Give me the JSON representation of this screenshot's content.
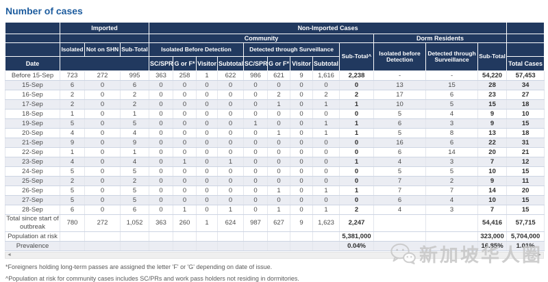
{
  "title": "Number of cases",
  "header": {
    "imported": "Imported",
    "non_imported": "Non-Imported Cases",
    "community": "Community",
    "dorm_residents": "Dorm Residents",
    "isolated": "Isolated",
    "not_on_shn": "Not on SHN",
    "sub_total": "Sub-Total",
    "isolated_before_detection": "Isolated Before Detection",
    "detected_through_surveillance": "Detected through Surveillance",
    "community_sub_total": "Sub-Total^",
    "dorm_isolated": "Isolated before Detection",
    "dorm_detected": "Detected through Surveillance",
    "dorm_sub_total": "Sub-Total",
    "date": "Date",
    "sc_spr": "SC/SPR",
    "g_or_f": "G or F*",
    "visitor": "Visitor",
    "subtotal": "Subtotal",
    "total_cases": "Total Cases"
  },
  "rows": [
    {
      "type": "date",
      "label": "Before 15-Sep",
      "values": [
        "723",
        "272",
        "995",
        "363",
        "258",
        "1",
        "622",
        "986",
        "621",
        "9",
        "1,616",
        "2,238",
        "-",
        "-",
        "54,220",
        "57,453"
      ]
    },
    {
      "type": "date",
      "label": "15-Sep",
      "values": [
        "6",
        "0",
        "6",
        "0",
        "0",
        "0",
        "0",
        "0",
        "0",
        "0",
        "0",
        "0",
        "13",
        "15",
        "28",
        "34"
      ]
    },
    {
      "type": "date",
      "label": "16-Sep",
      "values": [
        "2",
        "0",
        "2",
        "0",
        "0",
        "0",
        "0",
        "0",
        "2",
        "0",
        "2",
        "2",
        "17",
        "6",
        "23",
        "27"
      ]
    },
    {
      "type": "date",
      "label": "17-Sep",
      "values": [
        "2",
        "0",
        "2",
        "0",
        "0",
        "0",
        "0",
        "0",
        "1",
        "0",
        "1",
        "1",
        "10",
        "5",
        "15",
        "18"
      ]
    },
    {
      "type": "date",
      "label": "18-Sep",
      "values": [
        "1",
        "0",
        "1",
        "0",
        "0",
        "0",
        "0",
        "0",
        "0",
        "0",
        "0",
        "0",
        "5",
        "4",
        "9",
        "10"
      ]
    },
    {
      "type": "date",
      "label": "19-Sep",
      "values": [
        "5",
        "0",
        "5",
        "0",
        "0",
        "0",
        "0",
        "1",
        "0",
        "0",
        "1",
        "1",
        "6",
        "3",
        "9",
        "15"
      ]
    },
    {
      "type": "date",
      "label": "20-Sep",
      "values": [
        "4",
        "0",
        "4",
        "0",
        "0",
        "0",
        "0",
        "0",
        "1",
        "0",
        "1",
        "1",
        "5",
        "8",
        "13",
        "18"
      ]
    },
    {
      "type": "date",
      "label": "21-Sep",
      "values": [
        "9",
        "0",
        "9",
        "0",
        "0",
        "0",
        "0",
        "0",
        "0",
        "0",
        "0",
        "0",
        "16",
        "6",
        "22",
        "31"
      ]
    },
    {
      "type": "date",
      "label": "22-Sep",
      "values": [
        "1",
        "0",
        "1",
        "0",
        "0",
        "0",
        "0",
        "0",
        "0",
        "0",
        "0",
        "0",
        "6",
        "14",
        "20",
        "21"
      ]
    },
    {
      "type": "date",
      "label": "23-Sep",
      "values": [
        "4",
        "0",
        "4",
        "0",
        "1",
        "0",
        "1",
        "0",
        "0",
        "0",
        "0",
        "1",
        "4",
        "3",
        "7",
        "12"
      ]
    },
    {
      "type": "date",
      "label": "24-Sep",
      "values": [
        "5",
        "0",
        "5",
        "0",
        "0",
        "0",
        "0",
        "0",
        "0",
        "0",
        "0",
        "0",
        "5",
        "5",
        "10",
        "15"
      ]
    },
    {
      "type": "date",
      "label": "25-Sep",
      "values": [
        "2",
        "0",
        "2",
        "0",
        "0",
        "0",
        "0",
        "0",
        "0",
        "0",
        "0",
        "0",
        "7",
        "2",
        "9",
        "11"
      ]
    },
    {
      "type": "date",
      "label": "26-Sep",
      "values": [
        "5",
        "0",
        "5",
        "0",
        "0",
        "0",
        "0",
        "0",
        "1",
        "0",
        "1",
        "1",
        "7",
        "7",
        "14",
        "20"
      ]
    },
    {
      "type": "date",
      "label": "27-Sep",
      "values": [
        "5",
        "0",
        "5",
        "0",
        "0",
        "0",
        "0",
        "0",
        "0",
        "0",
        "0",
        "0",
        "6",
        "4",
        "10",
        "15"
      ]
    },
    {
      "type": "date",
      "label": "28-Sep",
      "values": [
        "6",
        "0",
        "6",
        "0",
        "1",
        "0",
        "1",
        "0",
        "1",
        "0",
        "1",
        "2",
        "4",
        "3",
        "7",
        "15"
      ]
    },
    {
      "type": "total",
      "label": "Total since start of outbreak",
      "values": [
        "780",
        "272",
        "1,052",
        "363",
        "260",
        "1",
        "624",
        "987",
        "627",
        "9",
        "1,623",
        "2,247",
        "",
        "",
        "54,416",
        "57,715"
      ]
    },
    {
      "type": "risk",
      "label": "Population at risk",
      "values": [
        "",
        "",
        "",
        "",
        "",
        "",
        "",
        "",
        "",
        "",
        "",
        "5,381,000",
        "",
        "",
        "323,000",
        "5,704,000"
      ]
    },
    {
      "type": "prevalence",
      "label": "Prevalence",
      "values": [
        "",
        "",
        "",
        "",
        "",
        "",
        "",
        "",
        "",
        "",
        "",
        "0.04%",
        "",
        "",
        "16.85%",
        "1.01%"
      ]
    }
  ],
  "footnotes": [
    "*Foreigners holding long-term passes are assigned the letter 'F' or 'G' depending on date of issue.",
    "^Population at risk for community cases includes SC/PRs and work pass holders not residing in dormitories."
  ],
  "scrollbar": {
    "left_arrow": "◄",
    "right_arrow": "►"
  },
  "watermark": {
    "text": "新加坡华人圈"
  },
  "colors": {
    "header_bg": "#21395f",
    "title_blue": "#1d5c9e",
    "row_alt": "#ebedf3",
    "watermark_gray": "#c6c6c6"
  }
}
